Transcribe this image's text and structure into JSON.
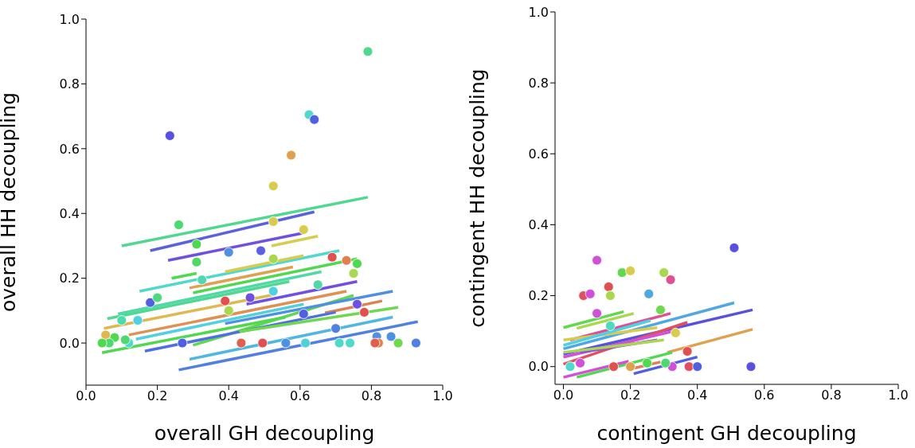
{
  "chart_data": [
    {
      "type": "scatter",
      "xlabel": "overall GH decoupling",
      "ylabel": "overall HH decoupling",
      "xlim": [
        0,
        1
      ],
      "ylim": [
        -0.13,
        1
      ],
      "xticks": [
        {
          "value": 0,
          "label": "0.0"
        },
        {
          "value": 0.2,
          "label": "0.2"
        },
        {
          "value": 0.4,
          "label": "0.4"
        },
        {
          "value": 0.6,
          "label": "0.6"
        },
        {
          "value": 0.8,
          "label": "0.8"
        },
        {
          "value": 1,
          "label": "1.0"
        }
      ],
      "yticks": [
        {
          "value": 0,
          "label": "0.0"
        },
        {
          "value": 0.2,
          "label": "0.2"
        },
        {
          "value": 0.4,
          "label": "0.4"
        },
        {
          "value": 0.6,
          "label": "0.6"
        },
        {
          "value": 0.8,
          "label": "0.8"
        },
        {
          "value": 1,
          "label": "1.0"
        }
      ],
      "series": [
        {
          "type": "line",
          "color": "#50d890",
          "x": [
            0.1,
            0.79
          ],
          "values": [
            0.3,
            0.45
          ]
        },
        {
          "type": "line",
          "color": "#5a60e0",
          "x": [
            0.18,
            0.64
          ],
          "values": [
            0.285,
            0.405
          ]
        },
        {
          "type": "line",
          "color": "#7050e0",
          "x": [
            0.23,
            0.61
          ],
          "values": [
            0.255,
            0.34
          ]
        },
        {
          "type": "line",
          "color": "#d8cc50",
          "x": [
            0.52,
            0.65
          ],
          "values": [
            0.3,
            0.33
          ]
        },
        {
          "type": "line",
          "color": "#50d8d0",
          "x": [
            0.15,
            0.71
          ],
          "values": [
            0.16,
            0.285
          ]
        },
        {
          "type": "line",
          "color": "#50d850",
          "x": [
            0.24,
            0.31
          ],
          "values": [
            0.2,
            0.215
          ]
        },
        {
          "type": "line",
          "color": "#d8cc50",
          "x": [
            0.39,
            0.61
          ],
          "values": [
            0.22,
            0.27
          ]
        },
        {
          "type": "line",
          "color": "#e0a050",
          "x": [
            0.29,
            0.58
          ],
          "values": [
            0.17,
            0.235
          ]
        },
        {
          "type": "line",
          "color": "#50d850",
          "x": [
            0.3,
            0.76
          ],
          "values": [
            0.155,
            0.26
          ]
        },
        {
          "type": "line",
          "color": "#50d8a8",
          "x": [
            0.09,
            0.66
          ],
          "values": [
            0.09,
            0.22
          ]
        },
        {
          "type": "line",
          "color": "#50d890",
          "x": [
            0.06,
            0.57
          ],
          "values": [
            0.075,
            0.19
          ]
        },
        {
          "type": "line",
          "color": "#e0b850",
          "x": [
            0.05,
            0.53
          ],
          "values": [
            0.045,
            0.15
          ]
        },
        {
          "type": "line",
          "color": "#7050e0",
          "x": [
            0.45,
            0.76
          ],
          "values": [
            0.12,
            0.19
          ]
        },
        {
          "type": "line",
          "color": "#e09050",
          "x": [
            0.12,
            0.73
          ],
          "values": [
            0.025,
            0.16
          ]
        },
        {
          "type": "line",
          "color": "#50d0e0",
          "x": [
            0.14,
            0.61
          ],
          "values": [
            0.012,
            0.12
          ]
        },
        {
          "type": "line",
          "color": "#60d850",
          "x": [
            0.3,
            0.75
          ],
          "values": [
            -0.007,
            0.147
          ]
        },
        {
          "type": "line",
          "color": "#5090e0",
          "x": [
            0.39,
            0.86
          ],
          "values": [
            0.06,
            0.16
          ]
        },
        {
          "type": "line",
          "color": "#e08050",
          "x": [
            0.67,
            0.83
          ],
          "values": [
            0.093,
            0.13
          ]
        },
        {
          "type": "line",
          "color": "#50d850",
          "x": [
            0.045,
            0.56
          ],
          "values": [
            -0.03,
            0.08
          ]
        },
        {
          "type": "line",
          "color": "#5070e0",
          "x": [
            0.165,
            0.7
          ],
          "values": [
            -0.025,
            0.095
          ]
        },
        {
          "type": "line",
          "color": "#70d850",
          "x": [
            0.43,
            0.875
          ],
          "values": [
            0.035,
            0.11
          ]
        },
        {
          "type": "line",
          "color": "#50b8e0",
          "x": [
            0.29,
            0.86
          ],
          "values": [
            -0.05,
            0.08
          ]
        },
        {
          "type": "line",
          "color": "#5080e0",
          "x": [
            0.26,
            0.93
          ],
          "values": [
            -0.083,
            0.066
          ]
        },
        {
          "x": [
            0.79,
            0.625,
            0.64,
            0.235,
            0.575,
            0.525,
            0.26,
            0.525,
            0.61,
            0.31,
            0.4,
            0.49,
            0.31,
            0.525,
            0.69,
            0.73,
            0.76,
            0.75,
            0.325,
            0.65,
            0.525,
            0.18,
            0.2,
            0.4,
            0.61,
            0.7,
            0.815,
            0.855,
            0.925,
            0.875,
            0.82,
            0.81,
            0.74,
            0.71,
            0.615,
            0.56,
            0.495,
            0.435,
            0.27,
            0.12,
            0.11,
            0.08,
            0.055,
            0.065,
            0.045,
            0.1,
            0.145,
            0.76,
            0.78,
            0.46,
            0.39
          ],
          "values": [
            0.9,
            0.705,
            0.69,
            0.64,
            0.58,
            0.485,
            0.365,
            0.375,
            0.35,
            0.305,
            0.28,
            0.285,
            0.25,
            0.26,
            0.265,
            0.255,
            0.245,
            0.215,
            0.195,
            0.18,
            0.16,
            0.125,
            0.14,
            0.1,
            0.09,
            0.045,
            0.02,
            0.02,
            0,
            0,
            0,
            0,
            0,
            0,
            0,
            0,
            0,
            0,
            0,
            0,
            0.01,
            0.017,
            0.025,
            0,
            0,
            0.07,
            0.07,
            0.12,
            0.095,
            0.14,
            0.13
          ],
          "colors": [
            "#50d890",
            "#50d8d0",
            "#5060e0",
            "#5a50e0",
            "#e0a050",
            "#d8cc50",
            "#50d870",
            "#d8cc50",
            "#d8cc50",
            "#50d850",
            "#5090e0",
            "#5a60e0",
            "#50d860",
            "#a8d850",
            "#e05050",
            "#e08050",
            "#50d850",
            "#a8d850",
            "#50d8b0",
            "#50d8a8",
            "#50d0e0",
            "#5060e0",
            "#50d880",
            "#a8d850",
            "#5060e0",
            "#5080e0",
            "#5090e0",
            "#5090e0",
            "#5080e0",
            "#70d850",
            "#e08050",
            "#e06050",
            "#50d8c8",
            "#50d8c8",
            "#50d0d8",
            "#5090e0",
            "#e05050",
            "#e06050",
            "#5060e0",
            "#50d8d0",
            "#50d870",
            "#50d850",
            "#e0b850",
            "#50d870",
            "#50d850",
            "#50d8b0",
            "#50d0e0",
            "#7050e0",
            "#e05050",
            "#7050e0",
            "#e05050"
          ]
        }
      ]
    },
    {
      "type": "scatter",
      "xlabel": "contingent GH decoupling",
      "ylabel": "contingent HH decoupling",
      "xlim": [
        -0.025,
        1
      ],
      "ylim": [
        -0.05,
        1
      ],
      "xticks": [
        {
          "value": 0,
          "label": "0.0"
        },
        {
          "value": 0.2,
          "label": "0.2"
        },
        {
          "value": 0.4,
          "label": "0.4"
        },
        {
          "value": 0.6,
          "label": "0.6"
        },
        {
          "value": 0.8,
          "label": "0.8"
        },
        {
          "value": 1,
          "label": "1.0"
        }
      ],
      "yticks": [
        {
          "value": 0,
          "label": "0.0"
        },
        {
          "value": 0.2,
          "label": "0.2"
        },
        {
          "value": 0.4,
          "label": "0.4"
        },
        {
          "value": 0.6,
          "label": "0.6"
        },
        {
          "value": 0.8,
          "label": "0.8"
        },
        {
          "value": 1,
          "label": "1.0"
        }
      ],
      "series": [
        {
          "type": "line",
          "color": "#60d850",
          "x": [
            0,
            0.18
          ],
          "values": [
            0.11,
            0.155
          ]
        },
        {
          "type": "line",
          "color": "#a8d850",
          "x": [
            0.04,
            0.21
          ],
          "values": [
            0.108,
            0.15
          ]
        },
        {
          "type": "line",
          "color": "#50a8e0",
          "x": [
            0,
            0.51
          ],
          "values": [
            0.05,
            0.18
          ]
        },
        {
          "type": "line",
          "color": "#5a50e0",
          "x": [
            0,
            0.565
          ],
          "values": [
            0.035,
            0.16
          ]
        },
        {
          "type": "line",
          "color": "#e0a050",
          "x": [
            0.31,
            0.565
          ],
          "values": [
            0.04,
            0.105
          ]
        },
        {
          "type": "line",
          "color": "#e05090",
          "x": [
            0.02,
            0.32
          ],
          "values": [
            0.075,
            0.15
          ]
        },
        {
          "type": "line",
          "color": "#d8cc50",
          "x": [
            0,
            0.28
          ],
          "values": [
            0.075,
            0.11
          ]
        },
        {
          "type": "line",
          "color": "#50d0e0",
          "x": [
            0,
            0.26
          ],
          "values": [
            0.06,
            0.13
          ]
        },
        {
          "type": "line",
          "color": "#e05060",
          "x": [
            0,
            0.37
          ],
          "values": [
            0.007,
            0.125
          ]
        },
        {
          "type": "line",
          "color": "#d050d8",
          "x": [
            0,
            0.33
          ],
          "values": [
            0.027,
            0.1
          ]
        },
        {
          "type": "line",
          "color": "#9050e0",
          "x": [
            0.05,
            0.28
          ],
          "values": [
            0.04,
            0.075
          ]
        },
        {
          "type": "line",
          "color": "#a8d850",
          "x": [
            0,
            0.3
          ],
          "values": [
            0.04,
            0.075
          ]
        },
        {
          "type": "line",
          "color": "#50d850",
          "x": [
            0.04,
            0.325
          ],
          "values": [
            -0.03,
            0.04
          ]
        },
        {
          "type": "line",
          "color": "#d050d8",
          "x": [
            0,
            0.195
          ],
          "values": [
            -0.03,
            0.015
          ]
        },
        {
          "type": "line",
          "color": "#5060e0",
          "x": [
            0.21,
            0.4
          ],
          "values": [
            -0.02,
            0.027
          ]
        },
        {
          "type": "line",
          "color": "#e08050",
          "x": [
            0.195,
            0.29
          ],
          "values": [
            -0.008,
            0.013
          ]
        },
        {
          "x": [
            0.51,
            0.56,
            0.1,
            0.175,
            0.2,
            0.3,
            0.32,
            0.135,
            0.06,
            0.08,
            0.14,
            0.255,
            0.29,
            0.335,
            0.37,
            0.375,
            0.4,
            0.325,
            0.305,
            0.1,
            0.14,
            0.02,
            0.05,
            0.15,
            0.2,
            0.25
          ],
          "values": [
            0.335,
            0,
            0.3,
            0.265,
            0.27,
            0.265,
            0.245,
            0.225,
            0.2,
            0.205,
            0.2,
            0.205,
            0.16,
            0.095,
            0.043,
            0,
            0,
            0,
            0.01,
            0.15,
            0.115,
            0,
            0.01,
            0,
            0,
            0.01
          ],
          "colors": [
            "#5a50e0",
            "#5a50e0",
            "#d050d8",
            "#60d850",
            "#d8cc50",
            "#a8d850",
            "#e05090",
            "#e05050",
            "#e05060",
            "#d050d8",
            "#a8d850",
            "#50a8e0",
            "#70d850",
            "#d8cc50",
            "#e05050",
            "#e05060",
            "#5060e0",
            "#d050d8",
            "#50d870",
            "#d050d8",
            "#50d8c0",
            "#50d8d0",
            "#d050d8",
            "#e05050",
            "#e0a050",
            "#50d850"
          ]
        }
      ]
    }
  ]
}
